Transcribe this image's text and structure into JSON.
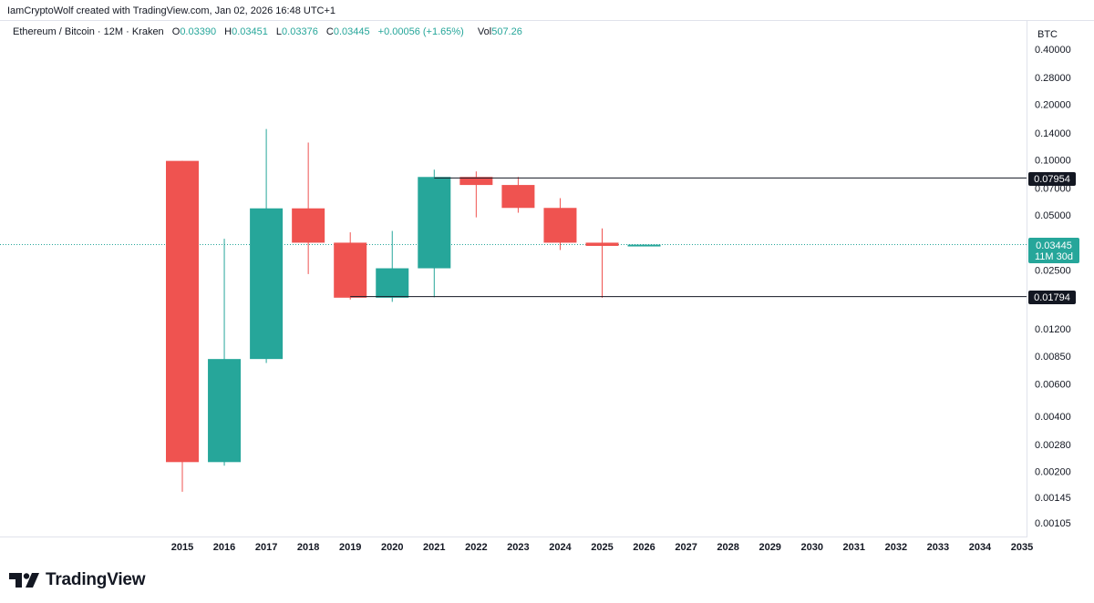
{
  "header": {
    "credit": "IamCryptoWolf created with TradingView.com, Jan 02, 2026 16:48 UTC+1"
  },
  "legend": {
    "symbol": "Ethereum / Bitcoin · 12M · Kraken",
    "o_label": "O",
    "o_value": "0.03390",
    "h_label": "H",
    "h_value": "0.03451",
    "l_label": "L",
    "l_value": "0.03376",
    "c_label": "C",
    "c_value": "0.03445",
    "change": "+0.00056 (+1.65%)",
    "vol_label": "Vol",
    "vol_value": "507.26"
  },
  "price_axis": {
    "currency": "BTC",
    "current_price": "0.03445",
    "countdown": "11M 30d",
    "resistance_label": "0.07954",
    "support_label": "0.01794"
  },
  "brand": {
    "name": "TradingView"
  },
  "colors": {
    "up": "#26a69a",
    "down": "#ef5350",
    "line": "#131722",
    "axis_text": "#131722"
  },
  "chart_data": {
    "type": "candlestick",
    "title": "Ethereum / Bitcoin · 12M · Kraken",
    "y_scale": "log",
    "y_ticks": [
      0.4,
      0.28,
      0.2,
      0.14,
      0.1,
      0.07,
      0.05,
      0.025,
      0.012,
      0.0085,
      0.006,
      0.004,
      0.0028,
      0.002,
      0.00145,
      0.00105
    ],
    "y_tick_labels": [
      "0.40000",
      "0.28000",
      "0.20000",
      "0.14000",
      "0.10000",
      "0.07000",
      "0.05000",
      "0.02500",
      "0.01200",
      "0.00850",
      "0.00600",
      "0.00400",
      "0.00280",
      "0.00200",
      "0.00145",
      "0.00105"
    ],
    "x_labels": [
      "2015",
      "2016",
      "2017",
      "2018",
      "2019",
      "2020",
      "2021",
      "2022",
      "2023",
      "2024",
      "2025",
      "2026",
      "2027",
      "2028",
      "2029",
      "2030",
      "2031",
      "2032",
      "2033",
      "2034",
      "2035"
    ],
    "candles": [
      {
        "year": "2015",
        "open": 0.0985,
        "high": 0.0985,
        "low": 0.00155,
        "close": 0.00225
      },
      {
        "year": "2016",
        "open": 0.00225,
        "high": 0.0371,
        "low": 0.00215,
        "close": 0.0082
      },
      {
        "year": "2017",
        "open": 0.0082,
        "high": 0.147,
        "low": 0.0078,
        "close": 0.0543
      },
      {
        "year": "2018",
        "open": 0.0543,
        "high": 0.124,
        "low": 0.0238,
        "close": 0.0353
      },
      {
        "year": "2019",
        "open": 0.0353,
        "high": 0.0402,
        "low": 0.0173,
        "close": 0.0177
      },
      {
        "year": "2020",
        "open": 0.0177,
        "high": 0.0409,
        "low": 0.0168,
        "close": 0.0256
      },
      {
        "year": "2021",
        "open": 0.0256,
        "high": 0.0882,
        "low": 0.0178,
        "close": 0.0805
      },
      {
        "year": "2022",
        "open": 0.0805,
        "high": 0.0863,
        "low": 0.0485,
        "close": 0.0728
      },
      {
        "year": "2023",
        "open": 0.0728,
        "high": 0.0805,
        "low": 0.0514,
        "close": 0.0546
      },
      {
        "year": "2024",
        "open": 0.0546,
        "high": 0.0617,
        "low": 0.0322,
        "close": 0.0353
      },
      {
        "year": "2025",
        "open": 0.0353,
        "high": 0.0422,
        "low": 0.0177,
        "close": 0.0339
      },
      {
        "year": "2026",
        "open": 0.0339,
        "high": 0.03451,
        "low": 0.03376,
        "close": 0.03445
      }
    ],
    "horizontal_lines": [
      0.07954,
      0.01794
    ],
    "current_price": 0.03445
  }
}
